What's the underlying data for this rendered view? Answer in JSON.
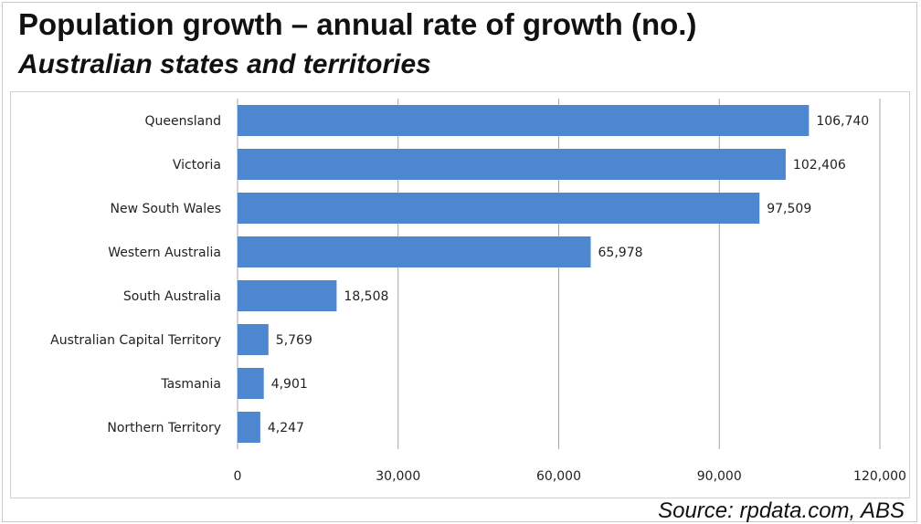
{
  "header": {
    "title": "Population growth – annual rate of growth (no.)",
    "subtitle": "Australian states and territories"
  },
  "footer": {
    "source": "Source:  rpdata.com, ABS"
  },
  "colors": {
    "bar": "#4f86d0",
    "grid": "#a6a6a6"
  },
  "chart_data": {
    "type": "bar",
    "orientation": "horizontal",
    "title": "Population growth – annual rate of growth (no.)",
    "subtitle": "Australian states and territories",
    "categories": [
      "Queensland",
      "Victoria",
      "New South Wales",
      "Western Australia",
      "South Australia",
      "Australian Capital Territory",
      "Tasmania",
      "Northern Territory"
    ],
    "values": [
      106740,
      102406,
      97509,
      65978,
      18508,
      5769,
      4901,
      4247
    ],
    "data_labels": [
      "106,740",
      "102,406",
      "97,509",
      "65,978",
      "18,508",
      "5,769",
      "4,901",
      "4,247"
    ],
    "xlim": [
      0,
      120000
    ],
    "x_ticks": [
      0,
      30000,
      60000,
      90000,
      120000
    ],
    "x_tick_labels": [
      "0",
      "30,000",
      "60,000",
      "90,000",
      "120,000"
    ],
    "grid": true,
    "legend": "none"
  }
}
